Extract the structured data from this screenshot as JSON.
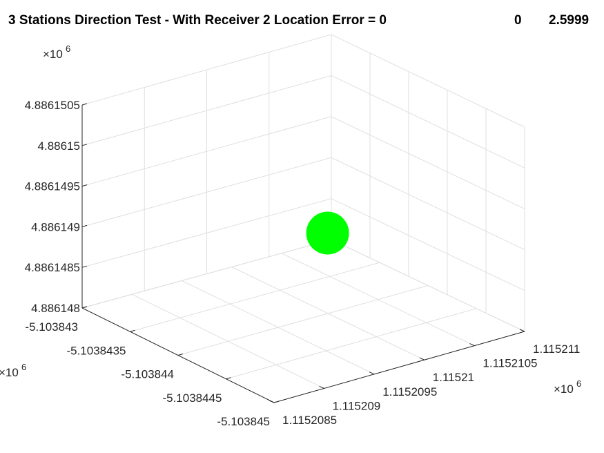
{
  "chart_data": {
    "type": "scatter",
    "title": "3 Stations Direction Test - With Receiver 2 Location Error = 0",
    "title_values": [
      "0",
      "2.5999"
    ],
    "grid": true,
    "exponent_label_base": "×10",
    "exponent_label_power": "6",
    "x_axis": {
      "tick_labels": [
        "1.1152085",
        "1.115209",
        "1.1152095",
        "1.11521",
        "1.1152105",
        "1.115211"
      ],
      "exponent": 6
    },
    "y_axis": {
      "tick_labels": [
        "-5.103843",
        "-5.1038435",
        "-5.103844",
        "-5.1038445",
        "-5.103845"
      ],
      "exponent": 6
    },
    "z_axis": {
      "tick_labels": [
        "4.886148",
        "4.8861485",
        "4.886149",
        "4.8861495",
        "4.88615",
        "4.8861505"
      ],
      "exponent": 6
    },
    "series": [
      {
        "points": [
          {
            "x": 1.11521,
            "y": -5.103844,
            "z": 4.886149
          }
        ],
        "color": "#00ff00"
      }
    ]
  }
}
